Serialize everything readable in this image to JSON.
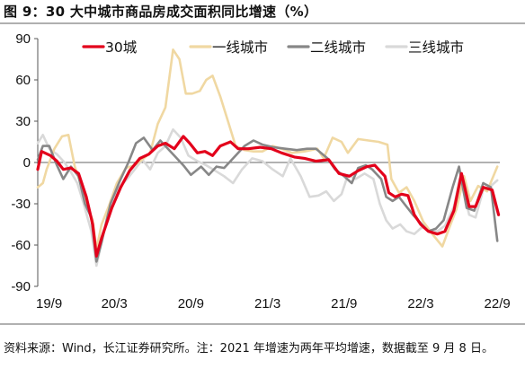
{
  "title": "图 9：30 大中城市商品房成交面积同比增速（%）",
  "source": "资料来源：Wind，长江证券研究所。注：2021 年增速为两年平均增速，数据截至 9 月 8 日。",
  "chart_data": {
    "type": "line",
    "ylim": [
      -90,
      90
    ],
    "yticks": [
      "90",
      "60",
      "30",
      "0",
      "-30",
      "-60",
      "-90"
    ],
    "yticks_values": [
      90,
      60,
      30,
      0,
      -30,
      -60,
      -90
    ],
    "xticks": [
      "19/9",
      "20/3",
      "20/9",
      "21/3",
      "21/9",
      "22/3",
      "22/9"
    ],
    "xticks_index": [
      0,
      6,
      12,
      18,
      24,
      30,
      36
    ],
    "legend_position": "top",
    "series": [
      {
        "name": "30城",
        "color": "#e3001b",
        "values": [
          [
            0,
            -5
          ],
          [
            0.3,
            8
          ],
          [
            1,
            5
          ],
          [
            1.5,
            1
          ],
          [
            2,
            -5
          ],
          [
            2.6,
            -4
          ],
          [
            3.2,
            -8
          ],
          [
            3.8,
            -25
          ],
          [
            4.3,
            -45
          ],
          [
            4.6,
            -68
          ],
          [
            5,
            -55
          ],
          [
            5.8,
            -33
          ],
          [
            6.5,
            -18
          ],
          [
            7.2,
            -6
          ],
          [
            8,
            3
          ],
          [
            8.7,
            6
          ],
          [
            9.4,
            12
          ],
          [
            10,
            14
          ],
          [
            10.7,
            10
          ],
          [
            11.4,
            19
          ],
          [
            11.9,
            14
          ],
          [
            12.5,
            7
          ],
          [
            13.1,
            8
          ],
          [
            13.7,
            5
          ],
          [
            14.3,
            12
          ],
          [
            15.1,
            15
          ],
          [
            15.7,
            10
          ],
          [
            16.5,
            10
          ],
          [
            17.4,
            11
          ],
          [
            18.3,
            10
          ],
          [
            19.1,
            7
          ],
          [
            20.1,
            4
          ],
          [
            20.9,
            3
          ],
          [
            21.8,
            1
          ],
          [
            22.8,
            2
          ],
          [
            23.6,
            -8
          ],
          [
            24.4,
            -10
          ],
          [
            25.1,
            -6
          ],
          [
            25.8,
            -3
          ],
          [
            26.4,
            -2
          ],
          [
            27.2,
            -10
          ],
          [
            27.5,
            -22
          ],
          [
            28,
            -25
          ],
          [
            28.5,
            -23
          ],
          [
            29,
            -24
          ],
          [
            29.5,
            -38
          ],
          [
            30,
            -45
          ],
          [
            30.6,
            -50
          ],
          [
            31.3,
            -52
          ],
          [
            31.9,
            -50
          ],
          [
            32.6,
            -35
          ],
          [
            33.2,
            -8
          ],
          [
            33.8,
            -32
          ],
          [
            34.3,
            -32
          ],
          [
            34.9,
            -18
          ],
          [
            35.6,
            -20
          ],
          [
            36.1,
            -38
          ]
        ]
      },
      {
        "name": "一线城市",
        "color": "#f0d8a2",
        "values": [
          [
            0,
            -18
          ],
          [
            0.4,
            -15
          ],
          [
            0.7,
            -5
          ],
          [
            1.3,
            10
          ],
          [
            1.9,
            19
          ],
          [
            2.4,
            20
          ],
          [
            2.9,
            -3
          ],
          [
            3.3,
            -14
          ],
          [
            3.8,
            -30
          ],
          [
            4.3,
            -42
          ],
          [
            4.6,
            -63
          ],
          [
            5,
            -45
          ],
          [
            5.6,
            -31
          ],
          [
            6.2,
            -15
          ],
          [
            6.9,
            -4
          ],
          [
            7.6,
            -2
          ],
          [
            8.3,
            3
          ],
          [
            8.8,
            7
          ],
          [
            9.4,
            28
          ],
          [
            10,
            40
          ],
          [
            10.6,
            82
          ],
          [
            11.1,
            75
          ],
          [
            11.6,
            50
          ],
          [
            12.1,
            50
          ],
          [
            12.7,
            52
          ],
          [
            13.2,
            60
          ],
          [
            13.7,
            63
          ],
          [
            14.3,
            48
          ],
          [
            14.9,
            30
          ],
          [
            15.5,
            12
          ],
          [
            16.2,
            9
          ],
          [
            16.9,
            8
          ],
          [
            17.6,
            8
          ],
          [
            18.4,
            12
          ],
          [
            19.1,
            10
          ],
          [
            19.9,
            7
          ],
          [
            20.9,
            8
          ],
          [
            21.9,
            10
          ],
          [
            22.4,
            3
          ],
          [
            23.1,
            18
          ],
          [
            23.8,
            15
          ],
          [
            24.3,
            7
          ],
          [
            25.1,
            17
          ],
          [
            25.9,
            16
          ],
          [
            26.7,
            15
          ],
          [
            27.4,
            13
          ],
          [
            27.7,
            -12
          ],
          [
            28.3,
            -22
          ],
          [
            28.9,
            -18
          ],
          [
            29.5,
            -28
          ],
          [
            30.2,
            -43
          ],
          [
            31,
            -53
          ],
          [
            31.7,
            -61
          ],
          [
            32.3,
            -46
          ],
          [
            32.8,
            -34
          ],
          [
            33.4,
            -10
          ],
          [
            33.9,
            -28
          ],
          [
            34.5,
            -17
          ],
          [
            35.2,
            -21
          ],
          [
            36,
            -3
          ]
        ]
      },
      {
        "name": "二线城市",
        "color": "#878787",
        "values": [
          [
            0,
            2
          ],
          [
            0.4,
            12
          ],
          [
            0.9,
            12
          ],
          [
            1.5,
            -2
          ],
          [
            2,
            -12
          ],
          [
            2.6,
            -3
          ],
          [
            3.2,
            -10
          ],
          [
            3.7,
            -30
          ],
          [
            4.2,
            -40
          ],
          [
            4.6,
            -72
          ],
          [
            5,
            -58
          ],
          [
            5.7,
            -30
          ],
          [
            6.4,
            -14
          ],
          [
            7.1,
            0
          ],
          [
            7.7,
            14
          ],
          [
            8.3,
            18
          ],
          [
            9,
            9
          ],
          [
            9.6,
            16
          ],
          [
            10.2,
            10
          ],
          [
            10.8,
            4
          ],
          [
            11.4,
            -2
          ],
          [
            12,
            -9
          ],
          [
            12.8,
            -3
          ],
          [
            13.4,
            -9
          ],
          [
            14,
            -3
          ],
          [
            14.6,
            -4
          ],
          [
            15.4,
            4
          ],
          [
            16.2,
            12
          ],
          [
            16.9,
            16
          ],
          [
            17.6,
            13
          ],
          [
            18.5,
            11
          ],
          [
            19.4,
            10
          ],
          [
            20.3,
            9
          ],
          [
            21.1,
            10
          ],
          [
            21.8,
            10
          ],
          [
            22.7,
            3
          ],
          [
            23.3,
            -5
          ],
          [
            24,
            -10
          ],
          [
            24.6,
            -15
          ],
          [
            25.1,
            -4
          ],
          [
            25.7,
            -2
          ],
          [
            26.2,
            -5
          ],
          [
            26.9,
            -12
          ],
          [
            27.3,
            -25
          ],
          [
            27.8,
            -28
          ],
          [
            28.3,
            -25
          ],
          [
            28.8,
            -31
          ],
          [
            29.4,
            -38
          ],
          [
            30,
            -44
          ],
          [
            30.6,
            -50
          ],
          [
            31.2,
            -48
          ],
          [
            31.8,
            -42
          ],
          [
            32.5,
            -18
          ],
          [
            33,
            -3
          ],
          [
            33.6,
            -33
          ],
          [
            34.2,
            -35
          ],
          [
            34.9,
            -15
          ],
          [
            35.5,
            -18
          ],
          [
            36,
            -57
          ]
        ]
      },
      {
        "name": "三线城市",
        "color": "#d9d9d9",
        "values": [
          [
            0,
            14
          ],
          [
            0.4,
            20
          ],
          [
            0.9,
            10
          ],
          [
            1.5,
            6
          ],
          [
            2.1,
            0
          ],
          [
            2.6,
            -7
          ],
          [
            3.1,
            -15
          ],
          [
            3.6,
            -30
          ],
          [
            4.2,
            -50
          ],
          [
            4.6,
            -75
          ],
          [
            5.1,
            -54
          ],
          [
            5.7,
            -28
          ],
          [
            6.4,
            -18
          ],
          [
            7,
            -12
          ],
          [
            7.6,
            -5
          ],
          [
            8.2,
            2
          ],
          [
            8.8,
            -5
          ],
          [
            9.4,
            7
          ],
          [
            10,
            12
          ],
          [
            10.6,
            24
          ],
          [
            11.2,
            18
          ],
          [
            11.8,
            5
          ],
          [
            12.5,
            1
          ],
          [
            13.2,
            -2
          ],
          [
            13.9,
            -6
          ],
          [
            14.6,
            -10
          ],
          [
            15.3,
            -15
          ],
          [
            16,
            -5
          ],
          [
            16.8,
            3
          ],
          [
            17.6,
            1
          ],
          [
            18.4,
            -5
          ],
          [
            19.2,
            -10
          ],
          [
            19.8,
            3
          ],
          [
            20.6,
            -10
          ],
          [
            21.3,
            -25
          ],
          [
            22,
            -24
          ],
          [
            22.6,
            -21
          ],
          [
            23.2,
            -28
          ],
          [
            23.8,
            -23
          ],
          [
            24.3,
            -9
          ],
          [
            24.9,
            -12
          ],
          [
            25.6,
            -8
          ],
          [
            26.3,
            -12
          ],
          [
            26.8,
            -30
          ],
          [
            27.3,
            -42
          ],
          [
            27.8,
            -48
          ],
          [
            28.4,
            -45
          ],
          [
            28.9,
            -50
          ],
          [
            29.5,
            -52
          ],
          [
            30.1,
            -47
          ],
          [
            30.7,
            -49
          ],
          [
            31.3,
            -50
          ],
          [
            31.9,
            -46
          ],
          [
            32.6,
            -32
          ],
          [
            33.1,
            -10
          ],
          [
            33.8,
            -38
          ],
          [
            34.3,
            -40
          ],
          [
            34.9,
            -20
          ],
          [
            35.5,
            -17
          ],
          [
            36,
            -13
          ]
        ]
      }
    ]
  }
}
